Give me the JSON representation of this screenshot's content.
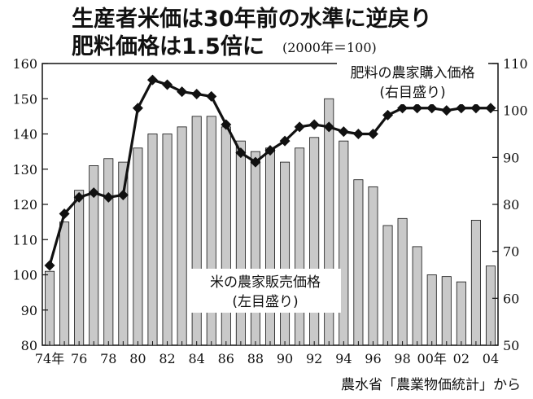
{
  "title_line1": "生産者米価は30年前の水準に逆戻り",
  "title_line2": "肥料価格は1.5倍に",
  "title_note": "(2000年＝100)",
  "source": "農水省「農業物価統計」から",
  "colors": {
    "ink": "#111111",
    "bar_fill": "#c9c9c9",
    "background": "#ffffff"
  },
  "chart_data": {
    "type": "bar",
    "x": [
      1974,
      1975,
      1976,
      1977,
      1978,
      1979,
      1980,
      1981,
      1982,
      1983,
      1984,
      1985,
      1986,
      1987,
      1988,
      1989,
      1990,
      1991,
      1992,
      1993,
      1994,
      1995,
      1996,
      1997,
      1998,
      1999,
      2000,
      2001,
      2002,
      2003,
      2004
    ],
    "x_tick_labels": [
      "74年",
      "76",
      "78",
      "80",
      "82",
      "84",
      "86",
      "88",
      "90",
      "92",
      "94",
      "96",
      "98",
      "00年",
      "02",
      "04"
    ],
    "y_left": {
      "lim": [
        80,
        160
      ],
      "ticks": [
        80,
        90,
        100,
        110,
        120,
        130,
        140,
        150,
        160
      ]
    },
    "y_right": {
      "lim": [
        50,
        110
      ],
      "ticks": [
        50,
        60,
        70,
        80,
        90,
        100,
        110
      ]
    },
    "grid": false,
    "series": [
      {
        "name": "米の農家販売価格",
        "name_line2": "(左目盛り)",
        "axis": "left",
        "kind": "bar",
        "values": [
          101,
          115,
          124,
          131,
          133,
          132,
          136,
          140,
          140,
          142,
          145,
          145,
          142,
          138,
          135,
          136,
          132,
          136,
          139,
          150,
          138,
          127,
          125,
          114,
          116,
          108,
          100,
          99.5,
          98,
          115.5,
          102.5
        ]
      },
      {
        "name": "肥料の農家購入価格",
        "name_line2": "(右目盛り)",
        "axis": "right",
        "kind": "line",
        "values": [
          67,
          78,
          81.5,
          82.5,
          81.5,
          82,
          100.5,
          106.5,
          105.5,
          104,
          103.5,
          103,
          97,
          91,
          89,
          91.5,
          93.5,
          96.5,
          97,
          96.5,
          95.5,
          95,
          95,
          99,
          100.5,
          100.5,
          100.5,
          100,
          100.5,
          100.5,
          100.5
        ]
      }
    ]
  }
}
